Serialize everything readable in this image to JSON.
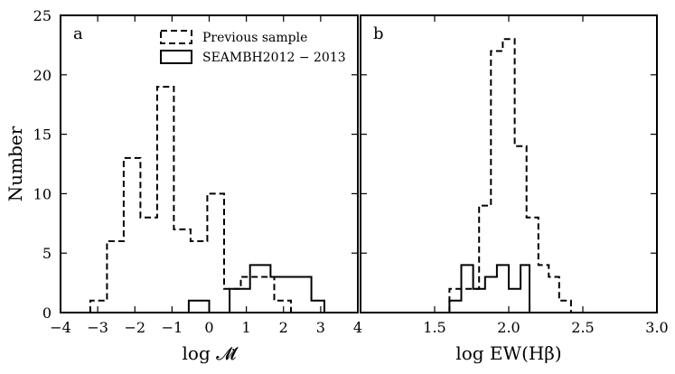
{
  "chart_data": [
    {
      "type": "histogram",
      "panel_label": "a",
      "xlabel": "log 𝓜̇",
      "ylabel": "Number",
      "xlim": [
        -4,
        4
      ],
      "ylim": [
        0,
        25
      ],
      "xticks": [
        -4,
        -3,
        -2,
        -1,
        0,
        1,
        2,
        3,
        4
      ],
      "xtick_labels": [
        "−4",
        "−3",
        "−2",
        "−1",
        "0",
        "1",
        "2",
        "3",
        "4"
      ],
      "yticks": [
        0,
        5,
        10,
        15,
        20,
        25
      ],
      "ytick_labels": [
        "0",
        "5",
        "10",
        "15",
        "20",
        "25"
      ],
      "legend": {
        "placement": "top-center",
        "entries": [
          {
            "label": "Previous sample",
            "style": "dashed"
          },
          {
            "label": "SEAMBH2012 − 2013",
            "style": "solid"
          }
        ]
      },
      "series": [
        {
          "name": "Previous sample",
          "style": "dashed",
          "bin_edges": [
            -3.2,
            -2.75,
            -2.3,
            -1.85,
            -1.4,
            -0.95,
            -0.5,
            -0.05,
            0.4,
            0.85,
            1.3,
            1.75,
            2.2
          ],
          "counts": [
            1,
            6,
            13,
            8,
            19,
            7,
            6,
            10,
            2,
            3,
            3,
            1
          ]
        },
        {
          "name": "SEAMBH2012 − 2013",
          "style": "solid",
          "bin_edges": [
            -0.55,
            0,
            0.55,
            1.1,
            1.65,
            2.2,
            2.75,
            3.1
          ],
          "counts": [
            1,
            0,
            2,
            4,
            3,
            3,
            1
          ]
        }
      ]
    },
    {
      "type": "histogram",
      "panel_label": "b",
      "xlabel": "log EW(Hβ)",
      "xlim": [
        1.0,
        3.0
      ],
      "ylim": [
        0,
        25
      ],
      "xticks": [
        1.5,
        2.0,
        2.5,
        3.0
      ],
      "xtick_labels": [
        "1.5",
        "2.0",
        "2.5",
        "3.0"
      ],
      "yticks": [
        0,
        5,
        10,
        15,
        20,
        25
      ],
      "series": [
        {
          "name": "Previous sample",
          "style": "dashed",
          "bin_edges": [
            1.6,
            1.8,
            1.88,
            1.96,
            2.04,
            2.12,
            2.2,
            2.27,
            2.34,
            2.42,
            2.58
          ],
          "counts": [
            2,
            9,
            22,
            23,
            14,
            8,
            4,
            3,
            1,
            0
          ]
        },
        {
          "name": "SEAMBH2012 − 2013",
          "style": "solid",
          "bin_edges": [
            1.6,
            1.68,
            1.76,
            1.84,
            1.92,
            2.0,
            2.08,
            2.14
          ],
          "counts": [
            1,
            4,
            2,
            3,
            4,
            2,
            4
          ]
        }
      ]
    }
  ]
}
